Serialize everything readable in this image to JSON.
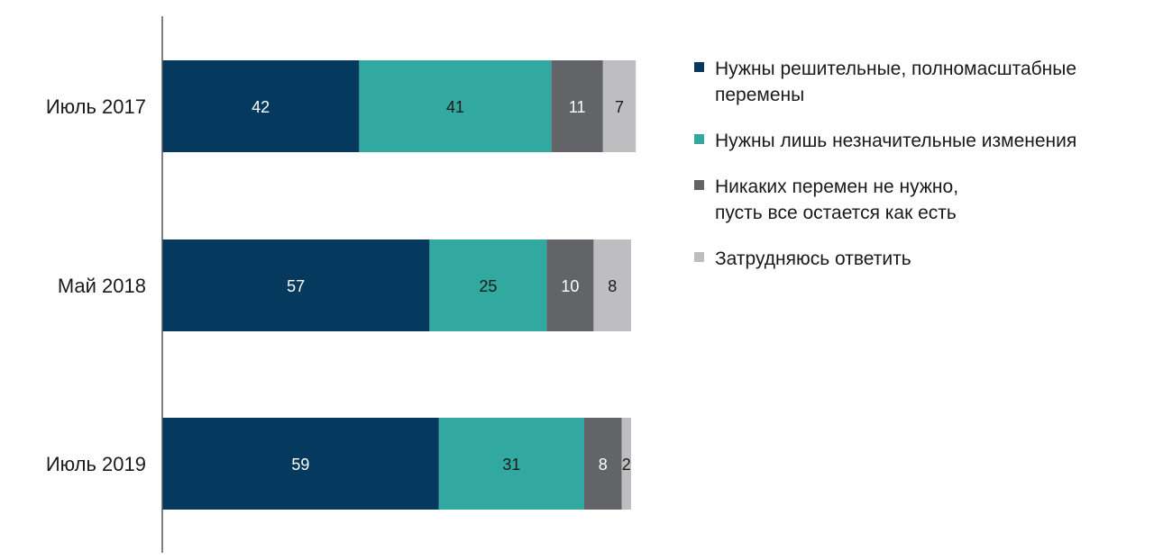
{
  "chart_data": {
    "type": "bar",
    "orientation": "horizontal",
    "stacked": true,
    "categories": [
      "Июль 2017",
      "Май 2018",
      "Июль 2019"
    ],
    "series": [
      {
        "name": "Нужны решительные, полномасштабные\nперемены",
        "values": [
          42,
          57,
          59
        ],
        "color": "#053a5e",
        "label_color": "#ffffff"
      },
      {
        "name": "Нужны лишь незначительные изменения",
        "values": [
          41,
          25,
          31
        ],
        "color": "#31a8a0",
        "label_color": "#1a1a1a"
      },
      {
        "name": "Никаких перемен не нужно,\nпусть все остается как есть",
        "values": [
          11,
          10,
          8
        ],
        "color": "#636467",
        "label_color": "#ffffff"
      },
      {
        "name": "Затрудняюсь ответить",
        "values": [
          7,
          8,
          2
        ],
        "color": "#bebec0",
        "label_color": "#1a1a1a"
      }
    ],
    "xlim": [
      0,
      100
    ],
    "grid": false,
    "legend_position": "right",
    "title": "",
    "xlabel": "",
    "ylabel": ""
  }
}
